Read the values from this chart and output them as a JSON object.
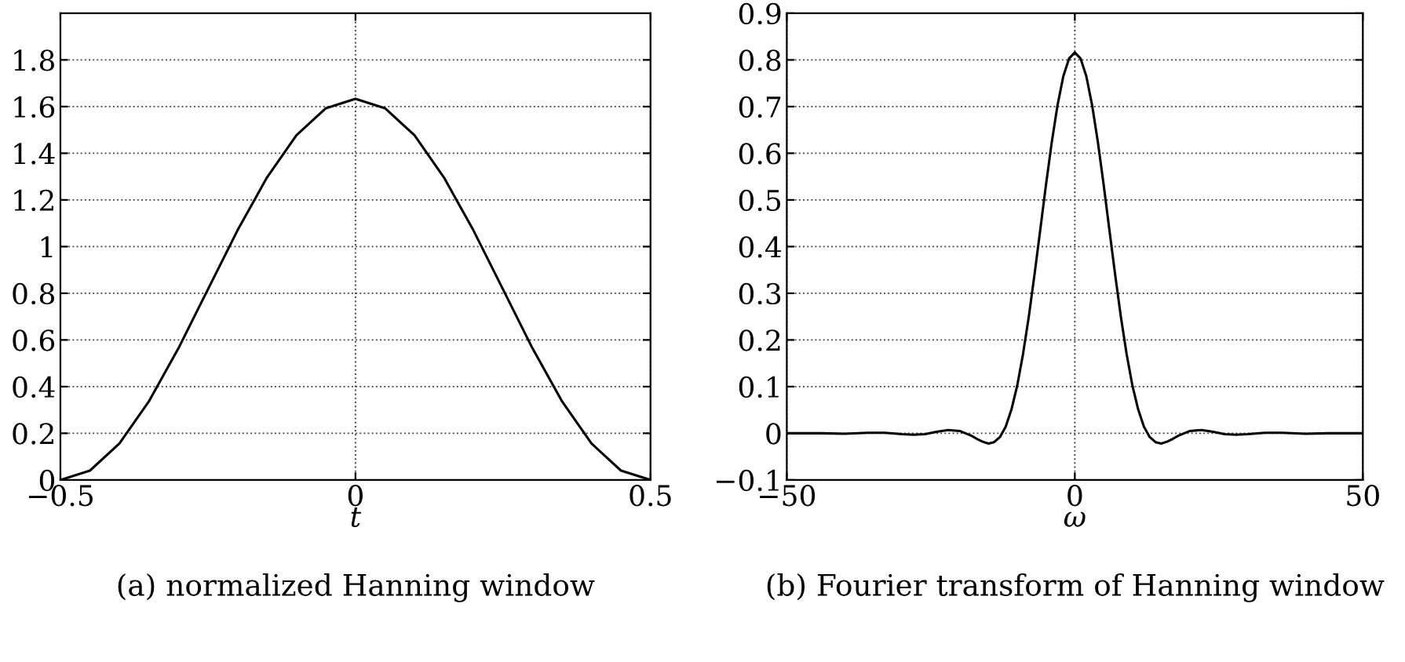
{
  "chart_data": [
    {
      "type": "line",
      "xlabel": "t",
      "annotations": [
        "(a) normalized Hanning window"
      ],
      "x": [
        -0.5,
        -0.45,
        -0.4,
        -0.35,
        -0.3,
        -0.25,
        -0.2,
        -0.15,
        -0.1,
        -0.05,
        0,
        0.05,
        0.1,
        0.15,
        0.2,
        0.25,
        0.3,
        0.35,
        0.4,
        0.45,
        0.5
      ],
      "series": [
        {
          "color": "#000000",
          "values": [
            0,
            0.04,
            0.156,
            0.337,
            0.564,
            0.817,
            1.069,
            1.296,
            1.477,
            1.593,
            1.633,
            1.593,
            1.477,
            1.296,
            1.069,
            0.817,
            0.564,
            0.337,
            0.156,
            0.04,
            0
          ]
        }
      ],
      "xlim": [
        -0.5,
        0.5
      ],
      "xticks": [
        -0.5,
        0,
        0.5
      ],
      "ylim": [
        0,
        2
      ],
      "yticks": [
        0,
        0.2,
        0.4,
        0.6,
        0.8,
        1,
        1.2,
        1.4,
        1.6,
        1.8
      ],
      "grid": true,
      "line_style": "solid",
      "marker": "none"
    },
    {
      "type": "line",
      "xlabel": "ω",
      "annotations": [
        "(b) Fourier transform of Hanning window"
      ],
      "x": [
        -50,
        -44,
        -40,
        -36,
        -33,
        -30,
        -28,
        -26,
        -24,
        -22,
        -20,
        -18,
        -17,
        -16,
        -15,
        -14,
        -13,
        -12,
        -11,
        -10,
        -9,
        -8,
        -7,
        -6,
        -5,
        -4,
        -3,
        -2,
        -1,
        0,
        1,
        2,
        3,
        4,
        5,
        6,
        7,
        8,
        9,
        10,
        11,
        12,
        13,
        14,
        15,
        16,
        17,
        18,
        20,
        22,
        24,
        26,
        28,
        30,
        33,
        36,
        40,
        44,
        50
      ],
      "series": [
        {
          "color": "#000000",
          "values": [
            0,
            0,
            -0.001,
            0.001,
            0.001,
            -0.002,
            -0.003,
            -0.002,
            0.003,
            0.007,
            0.005,
            -0.005,
            -0.012,
            -0.018,
            -0.022,
            -0.019,
            -0.008,
            0.014,
            0.051,
            0.102,
            0.169,
            0.249,
            0.34,
            0.436,
            0.533,
            0.624,
            0.703,
            0.765,
            0.803,
            0.816,
            0.803,
            0.765,
            0.703,
            0.624,
            0.533,
            0.436,
            0.34,
            0.249,
            0.169,
            0.102,
            0.051,
            0.014,
            -0.008,
            -0.019,
            -0.022,
            -0.018,
            -0.012,
            -0.005,
            0.005,
            0.007,
            0.003,
            -0.002,
            -0.003,
            -0.002,
            0.001,
            0.001,
            -0.001,
            0,
            0
          ]
        }
      ],
      "xlim": [
        -50,
        50
      ],
      "xticks": [
        -50,
        0,
        50
      ],
      "ylim": [
        -0.1,
        0.9
      ],
      "yticks": [
        -0.1,
        0,
        0.1,
        0.2,
        0.3,
        0.4,
        0.5,
        0.6,
        0.7,
        0.8,
        0.9
      ],
      "grid": true,
      "line_style": "solid",
      "marker": "none"
    }
  ]
}
